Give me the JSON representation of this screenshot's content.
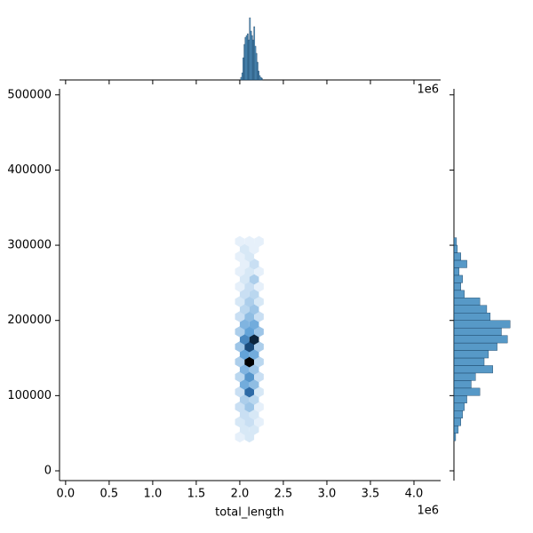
{
  "chart_data": {
    "type": "hexbin-joint",
    "xlabel": "total_length",
    "x_offset_label": "1e6",
    "xlim": [
      -70000,
      4306000
    ],
    "ylim": [
      -13000,
      508000
    ],
    "xticks": [
      {
        "value": 0,
        "label": "0.0"
      },
      {
        "value": 500000,
        "label": "0.5"
      },
      {
        "value": 1000000,
        "label": "1.0"
      },
      {
        "value": 1500000,
        "label": "1.5"
      },
      {
        "value": 2000000,
        "label": "2.0"
      },
      {
        "value": 2500000,
        "label": "2.5"
      },
      {
        "value": 3000000,
        "label": "3.0"
      },
      {
        "value": 3500000,
        "label": "3.5"
      },
      {
        "value": 4000000,
        "label": "4.0"
      }
    ],
    "yticks": [
      0,
      100000,
      200000,
      300000,
      400000,
      500000
    ],
    "cmap": [
      "#f4f9fe",
      "#63a3d8",
      "#1f5c99",
      "#000000"
    ],
    "x": [
      2000000,
      2110000,
      2055000,
      2165000,
      2000000,
      2110000,
      2220000,
      2055000,
      2165000,
      2000000,
      2110000,
      2220000,
      2055000,
      2165000,
      2000000,
      2110000,
      2220000,
      2055000,
      2165000,
      2000000,
      2110000,
      2220000,
      2055000,
      2165000,
      2000000,
      2110000,
      2220000,
      2055000,
      2165000,
      2000000,
      2110000,
      2220000,
      2055000,
      2165000,
      2000000,
      2110000,
      2220000,
      2055000,
      2165000,
      2000000,
      2110000,
      2220000,
      2055000,
      2165000,
      2000000,
      2110000,
      2220000,
      2055000,
      2165000,
      2000000,
      2110000,
      2220000,
      2055000,
      2165000,
      2000000,
      2110000,
      2220000,
      2055000,
      2165000,
      2000000,
      2110000,
      2055000,
      2165000,
      2000000,
      2110000,
      2220000
    ],
    "y": [
      45000,
      45000,
      55000,
      55000,
      65000,
      65000,
      65000,
      75000,
      75000,
      85000,
      85000,
      85000,
      95000,
      95000,
      105000,
      105000,
      105000,
      115000,
      115000,
      125000,
      125000,
      125000,
      135000,
      135000,
      145000,
      145000,
      145000,
      155000,
      155000,
      165000,
      165000,
      165000,
      175000,
      175000,
      185000,
      185000,
      185000,
      195000,
      195000,
      205000,
      205000,
      205000,
      215000,
      215000,
      225000,
      225000,
      225000,
      235000,
      235000,
      245000,
      245000,
      245000,
      255000,
      255000,
      265000,
      265000,
      265000,
      275000,
      275000,
      285000,
      285000,
      295000,
      295000,
      305000,
      305000,
      305000
    ],
    "counts": [
      1,
      2,
      2,
      2,
      2,
      3,
      1,
      3,
      2,
      3,
      6,
      1,
      5,
      4,
      3,
      18,
      2,
      9,
      7,
      4,
      12,
      3,
      8,
      6,
      5,
      30,
      4,
      10,
      9,
      6,
      22,
      5,
      14,
      26,
      5,
      10,
      6,
      8,
      9,
      3,
      7,
      3,
      4,
      6,
      2,
      5,
      2,
      3,
      4,
      1,
      3,
      1,
      2,
      5,
      1,
      2,
      1,
      1,
      3,
      1,
      2,
      2,
      1,
      1,
      1,
      1
    ],
    "marginal_x": {
      "color": "#1f77b4",
      "ylim": [
        0,
        72
      ],
      "bins": [
        2010000,
        2022500,
        2035000,
        2047500,
        2060000,
        2072500,
        2085000,
        2097500,
        2110000,
        2122500,
        2135000,
        2147500,
        2160000,
        2172500,
        2185000,
        2197500,
        2210000,
        2222500,
        2235000,
        2247500,
        2260000
      ],
      "counts": [
        3,
        8,
        25,
        40,
        48,
        50,
        52,
        45,
        70,
        55,
        50,
        45,
        60,
        38,
        30,
        20,
        10,
        5,
        3,
        2
      ]
    },
    "marginal_y": {
      "color": "#1f77b4",
      "xlim": [
        0,
        72
      ],
      "bins": [
        40000,
        50000,
        60000,
        70000,
        80000,
        90000,
        100000,
        110000,
        120000,
        130000,
        140000,
        150000,
        160000,
        170000,
        180000,
        190000,
        200000,
        210000,
        220000,
        230000,
        240000,
        250000,
        260000,
        270000,
        280000,
        290000,
        300000,
        310000
      ],
      "counts": [
        2,
        5,
        8,
        10,
        12,
        15,
        30,
        20,
        25,
        45,
        35,
        40,
        50,
        62,
        55,
        65,
        42,
        38,
        30,
        12,
        8,
        10,
        6,
        15,
        8,
        4,
        3
      ]
    }
  }
}
